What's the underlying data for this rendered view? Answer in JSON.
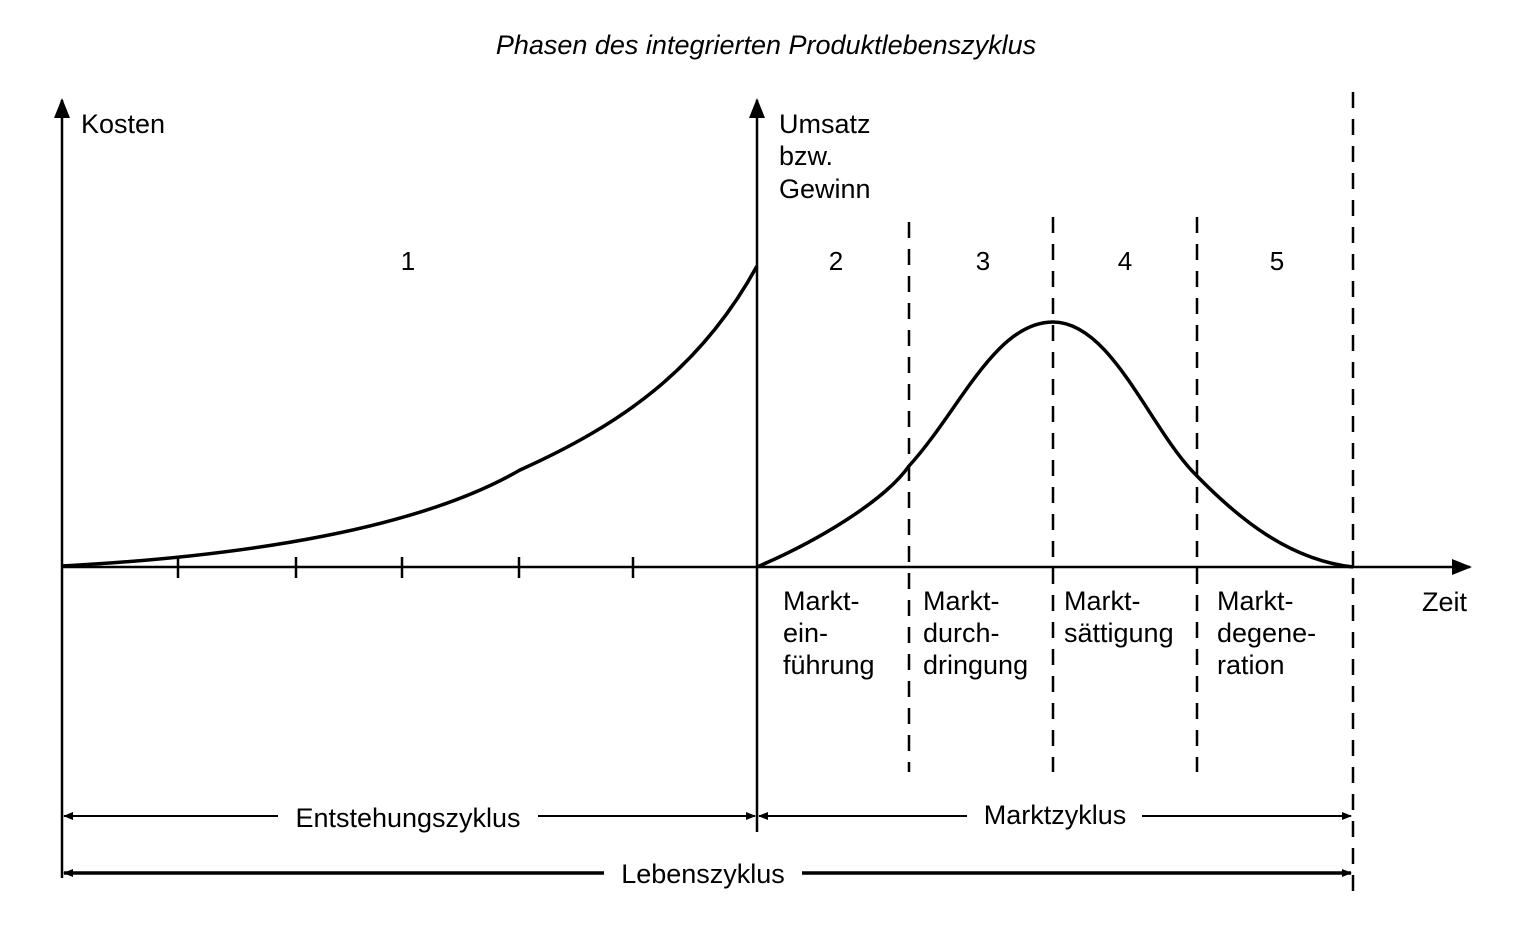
{
  "title": "Phasen des integrierten Produktlebenszyklus",
  "axes": {
    "left_y_label": "Kosten",
    "right_y_label_lines": [
      "Umsatz",
      "bzw.",
      "Gewinn"
    ],
    "x_label": "Zeit"
  },
  "phases": [
    {
      "number": "1",
      "label_lines": []
    },
    {
      "number": "2",
      "label_lines": [
        "Markt-",
        "ein-",
        "führung"
      ]
    },
    {
      "number": "3",
      "label_lines": [
        "Markt-",
        "durch-",
        "dringung"
      ]
    },
    {
      "number": "4",
      "label_lines": [
        "Markt-",
        "sättigung"
      ]
    },
    {
      "number": "5",
      "label_lines": [
        "Markt-",
        "degene-",
        "ration"
      ]
    }
  ],
  "spans": {
    "entstehung": "Entstehungszyklus",
    "markt": "Marktzyklus",
    "leben": "Lebenszyklus"
  },
  "colors": {
    "ink": "#000000",
    "background": "#ffffff"
  }
}
